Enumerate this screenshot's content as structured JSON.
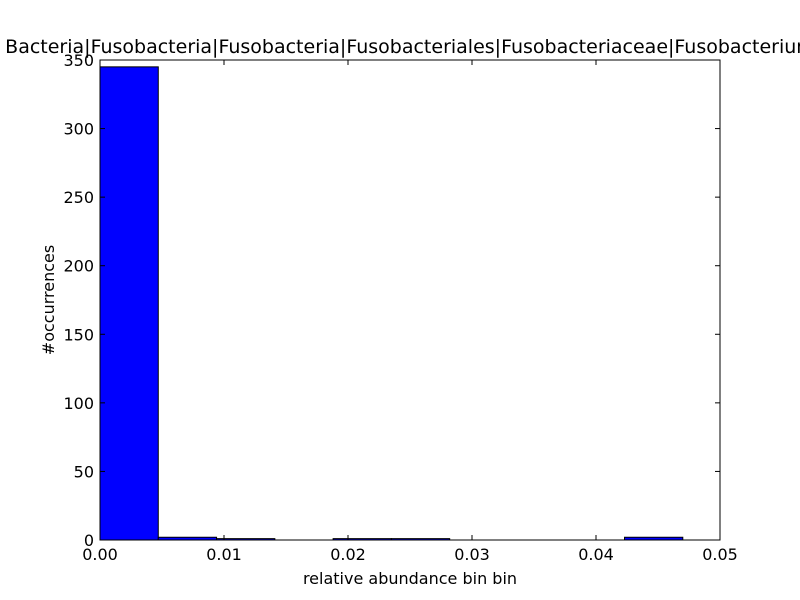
{
  "chart_data": {
    "type": "bar",
    "title": "Bacteria|Fusobacteria|Fusobacteria|Fusobacteriales|Fusobacteriaceae|Fusobacterium",
    "xlabel": "relative abundance bin bin",
    "ylabel": "#occurrences",
    "xlim": [
      0.0,
      0.05
    ],
    "ylim": [
      0,
      350
    ],
    "xticks": [
      "0.00",
      "0.01",
      "0.02",
      "0.03",
      "0.04",
      "0.05"
    ],
    "yticks": [
      "0",
      "50",
      "100",
      "150",
      "200",
      "250",
      "300",
      "350"
    ],
    "bins": [
      {
        "x0": 0.0,
        "x1": 0.0047,
        "count": 345
      },
      {
        "x0": 0.0047,
        "x1": 0.0094,
        "count": 2
      },
      {
        "x0": 0.0094,
        "x1": 0.0141,
        "count": 1
      },
      {
        "x0": 0.0141,
        "x1": 0.0188,
        "count": 0
      },
      {
        "x0": 0.0188,
        "x1": 0.0235,
        "count": 1
      },
      {
        "x0": 0.0235,
        "x1": 0.0282,
        "count": 1
      },
      {
        "x0": 0.0282,
        "x1": 0.0329,
        "count": 0
      },
      {
        "x0": 0.0329,
        "x1": 0.0376,
        "count": 0
      },
      {
        "x0": 0.0376,
        "x1": 0.0423,
        "count": 0
      },
      {
        "x0": 0.0423,
        "x1": 0.047,
        "count": 2
      }
    ],
    "bar_color": "#0000ff",
    "edge_color": "#000000",
    "grid": false,
    "legend": "none"
  }
}
